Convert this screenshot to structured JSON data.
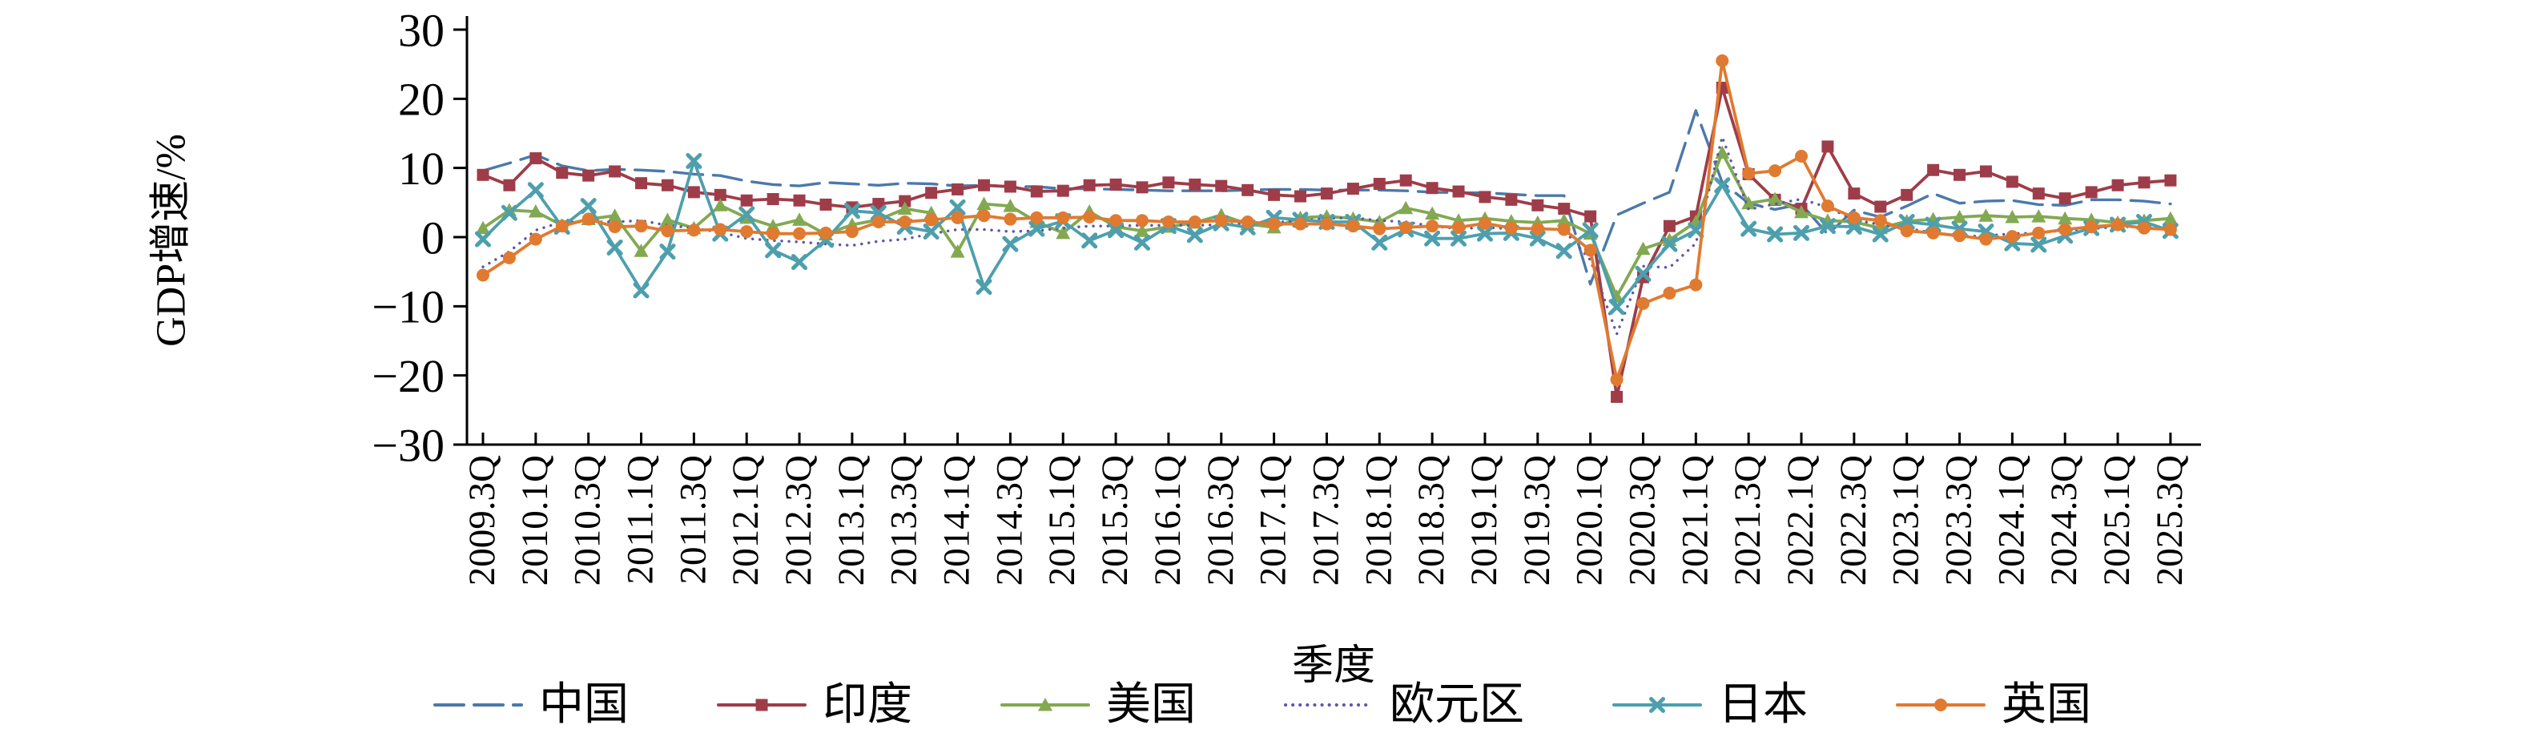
{
  "figure": {
    "title": "",
    "y_axis_title": "GDP增速/%",
    "x_axis_title": "季度",
    "background_color": "#ffffff",
    "axis_color": "#000000"
  },
  "chart_data": {
    "type": "line",
    "title": "",
    "xlabel": "季度",
    "ylabel": "GDP增速/%",
    "ylim": [
      -30,
      30
    ],
    "y_ticks": [
      30,
      20,
      10,
      0,
      -10,
      -20,
      -30
    ],
    "grid": false,
    "legend_position": "bottom",
    "x_unit": "quarter",
    "x_first": "2009.3Q",
    "x_last": "2025.3Q",
    "points_per_series": 65,
    "x_tick_labels": [
      "2009.3Q",
      "2010.1Q",
      "2010.3Q",
      "2011.1Q",
      "2011.3Q",
      "2012.1Q",
      "2012.3Q",
      "2013.1Q",
      "2013.3Q",
      "2014.1Q",
      "2014.3Q",
      "2015.1Q",
      "2015.3Q",
      "2016.1Q",
      "2016.3Q",
      "2017.1Q",
      "2017.3Q",
      "2018.1Q",
      "2018.3Q",
      "2019.1Q",
      "2019.3Q",
      "2020.1Q",
      "2020.3Q",
      "2021.1Q",
      "2021.3Q",
      "2022.1Q",
      "2022.3Q",
      "2023.1Q",
      "2023.3Q",
      "2024.1Q",
      "2024.3Q",
      "2025.1Q",
      "2025.3Q"
    ],
    "series": [
      {
        "name": "中国",
        "color": "#4b79ab",
        "marker": "none",
        "line_style": "long-dash",
        "values": [
          9.6,
          10.7,
          11.9,
          10.3,
          9.6,
          9.8,
          9.7,
          9.5,
          9.1,
          8.9,
          8.1,
          7.6,
          7.4,
          7.9,
          7.7,
          7.5,
          7.8,
          7.7,
          7.4,
          7.5,
          7.3,
          7.3,
          7.0,
          7.0,
          6.9,
          6.8,
          6.7,
          6.7,
          6.7,
          6.8,
          6.9,
          6.9,
          6.8,
          6.8,
          6.8,
          6.7,
          6.5,
          6.4,
          6.4,
          6.2,
          6.0,
          6.0,
          -6.8,
          3.2,
          4.9,
          6.5,
          18.3,
          7.9,
          4.9,
          4.0,
          4.8,
          0.4,
          3.9,
          2.9,
          4.5,
          6.3,
          4.9,
          5.2,
          5.3,
          4.7,
          4.6,
          5.4,
          5.4,
          5.2,
          4.8
        ]
      },
      {
        "name": "印度",
        "color": "#9e3d49",
        "marker": "square",
        "line_style": "solid",
        "values": [
          9.0,
          7.5,
          11.4,
          9.3,
          8.9,
          9.5,
          7.8,
          7.5,
          6.5,
          6.1,
          5.3,
          5.5,
          5.3,
          4.7,
          4.3,
          4.8,
          5.2,
          6.4,
          6.9,
          7.5,
          7.3,
          6.6,
          6.7,
          7.5,
          7.6,
          7.2,
          7.9,
          7.6,
          7.4,
          6.8,
          6.1,
          5.9,
          6.3,
          7.0,
          7.7,
          8.2,
          7.1,
          6.6,
          5.8,
          5.4,
          4.6,
          4.1,
          3.0,
          -23.1,
          -5.8,
          1.6,
          3.0,
          21.6,
          9.1,
          5.4,
          4.1,
          13.1,
          6.3,
          4.4,
          6.1,
          9.7,
          9.0,
          9.5,
          8.0,
          6.3,
          5.6,
          6.5,
          7.5,
          7.9,
          8.2
        ]
      },
      {
        "name": "美国",
        "color": "#82a951",
        "marker": "triangle",
        "line_style": "solid",
        "values": [
          1.3,
          3.9,
          3.7,
          1.7,
          2.6,
          3.1,
          -2.0,
          2.5,
          1.3,
          4.6,
          2.8,
          1.6,
          2.5,
          0.4,
          1.8,
          2.5,
          4.1,
          3.5,
          -2.1,
          4.8,
          4.5,
          2.2,
          0.6,
          3.7,
          1.5,
          0.9,
          1.5,
          2.1,
          3.2,
          1.9,
          1.4,
          2.8,
          3.0,
          2.7,
          2.2,
          4.2,
          3.4,
          2.4,
          2.7,
          2.3,
          2.1,
          2.4,
          0.5,
          -8.6,
          -1.7,
          -0.4,
          2.2,
          12.2,
          4.9,
          5.5,
          3.6,
          2.4,
          2.2,
          1.3,
          2.3,
          2.6,
          2.9,
          3.1,
          2.9,
          3.0,
          2.7,
          2.5,
          2.1,
          2.4,
          2.7
        ]
      },
      {
        "name": "欧元区",
        "color": "#5d57a5",
        "marker": "none",
        "line_style": "dotted",
        "values": [
          -4.3,
          -2.1,
          1.0,
          2.2,
          2.2,
          2.2,
          2.4,
          1.7,
          1.3,
          0.7,
          -0.2,
          -0.5,
          -0.7,
          -1.0,
          -1.2,
          -0.6,
          -0.3,
          0.5,
          1.1,
          1.1,
          0.8,
          0.9,
          1.3,
          1.6,
          1.6,
          1.7,
          1.7,
          1.7,
          1.8,
          2.0,
          2.1,
          2.4,
          2.7,
          2.8,
          2.4,
          2.2,
          1.6,
          1.2,
          1.4,
          1.2,
          1.3,
          1.0,
          -3.3,
          -14.0,
          -4.2,
          -4.4,
          -0.9,
          14.5,
          4.0,
          4.8,
          5.5,
          4.3,
          2.5,
          1.8,
          1.3,
          0.6,
          0.1,
          0.2,
          0.5,
          0.6,
          1.0,
          1.2,
          1.5,
          1.5,
          1.3
        ]
      },
      {
        "name": "日本",
        "color": "#4e9fae",
        "marker": "x",
        "line_style": "solid",
        "values": [
          -0.3,
          3.5,
          6.8,
          1.5,
          4.5,
          -1.5,
          -7.7,
          -2.1,
          11.0,
          0.5,
          3.3,
          -1.9,
          -3.6,
          -0.4,
          3.8,
          3.5,
          1.5,
          0.8,
          4.3,
          -7.2,
          -1.0,
          1.2,
          2.3,
          -0.5,
          1.0,
          -0.8,
          1.6,
          0.3,
          2.0,
          1.4,
          2.8,
          2.5,
          2.2,
          2.2,
          -0.8,
          1.1,
          -0.2,
          -0.2,
          0.5,
          0.6,
          -0.2,
          -2.0,
          1.0,
          -10.1,
          -5.3,
          -1.0,
          1.0,
          7.5,
          1.2,
          0.4,
          0.6,
          1.6,
          1.5,
          0.4,
          2.2,
          1.8,
          1.2,
          0.8,
          -0.9,
          -1.1,
          0.2,
          1.3,
          1.8,
          2.2,
          0.9
        ]
      },
      {
        "name": "英国",
        "color": "#e07a30",
        "marker": "circle",
        "line_style": "solid",
        "values": [
          -5.5,
          -3.0,
          -0.3,
          1.6,
          2.6,
          1.5,
          1.6,
          0.9,
          1.0,
          1.1,
          0.8,
          0.5,
          0.5,
          0.6,
          0.8,
          2.2,
          2.2,
          2.5,
          2.8,
          3.1,
          2.6,
          2.8,
          2.8,
          2.9,
          2.4,
          2.4,
          2.2,
          2.2,
          2.4,
          2.2,
          1.9,
          1.9,
          1.9,
          1.6,
          1.2,
          1.4,
          1.6,
          1.4,
          2.0,
          1.3,
          1.2,
          1.1,
          -1.9,
          -20.6,
          -9.6,
          -8.1,
          -6.9,
          25.5,
          9.2,
          9.6,
          11.7,
          4.5,
          2.8,
          2.4,
          0.9,
          0.6,
          0.2,
          -0.3,
          0.1,
          0.6,
          1.1,
          1.5,
          1.8,
          1.3,
          1.1
        ]
      }
    ]
  }
}
